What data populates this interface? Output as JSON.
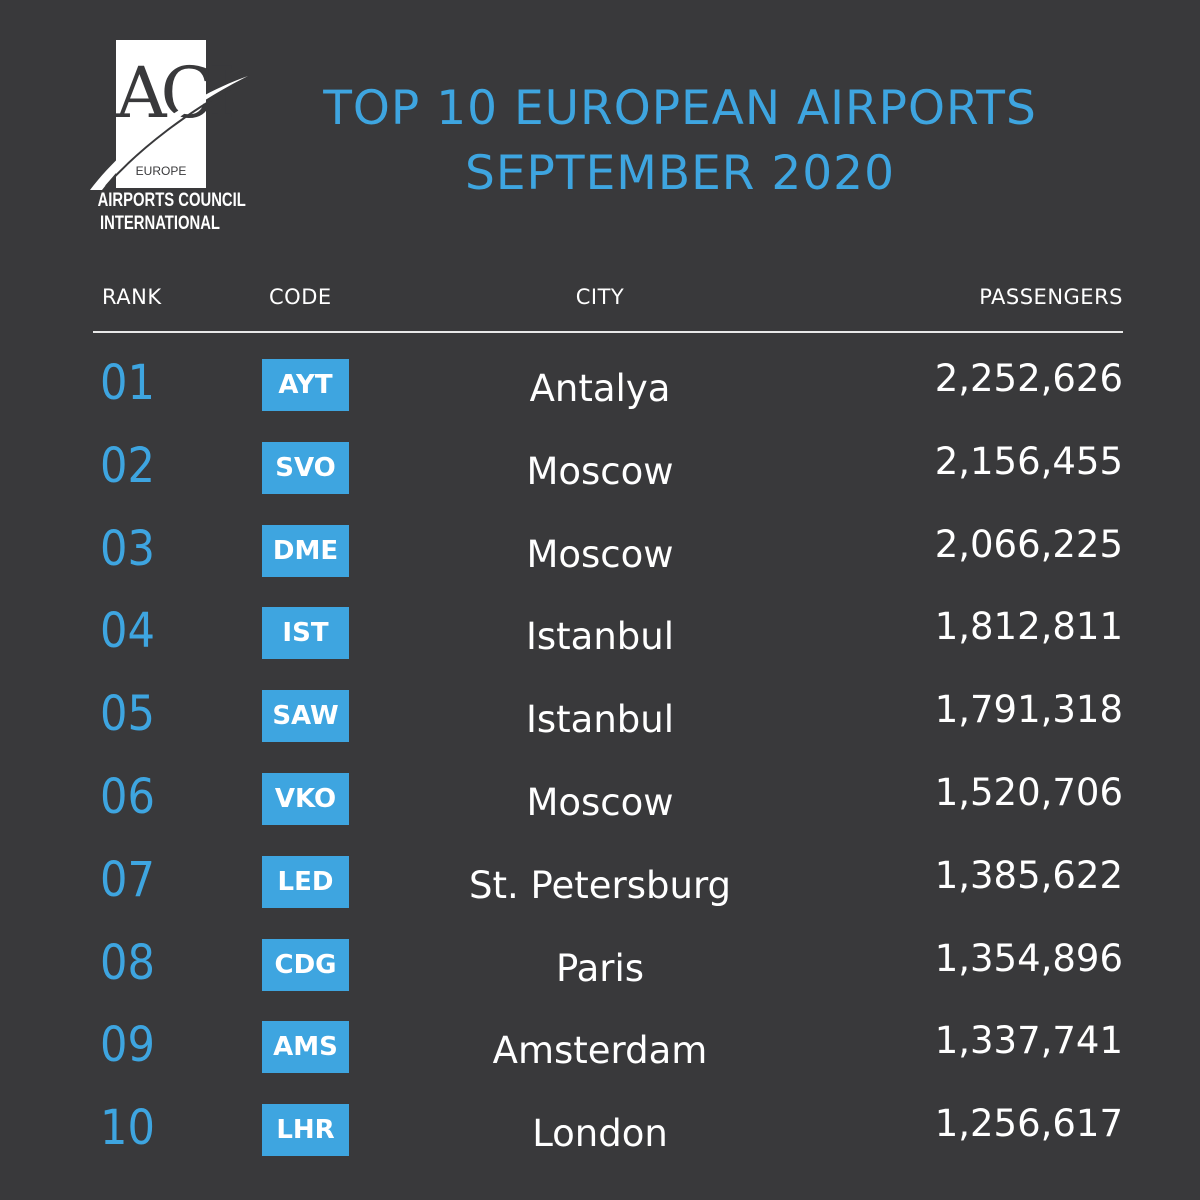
{
  "logo": {
    "mark": "ACI",
    "region": "EUROPE",
    "line1": "AIRPORTS COUNCIL",
    "line2": "INTERNATIONAL"
  },
  "title": {
    "line1": "TOP 10 EUROPEAN AIRPORTS",
    "line2": "SEPTEMBER 2020"
  },
  "columns": {
    "rank": "RANK",
    "code": "CODE",
    "city": "CITY",
    "passengers": "PASSENGERS"
  },
  "colors": {
    "background": "#39393b",
    "accent": "#3ea5e0",
    "text": "#ffffff"
  },
  "rows": [
    {
      "rank": "01",
      "code": "AYT",
      "city": "Antalya",
      "passengers": "2,252,626"
    },
    {
      "rank": "02",
      "code": "SVO",
      "city": "Moscow",
      "passengers": "2,156,455"
    },
    {
      "rank": "03",
      "code": "DME",
      "city": "Moscow",
      "passengers": "2,066,225"
    },
    {
      "rank": "04",
      "code": "IST",
      "city": "Istanbul",
      "passengers": "1,812,811"
    },
    {
      "rank": "05",
      "code": "SAW",
      "city": "Istanbul",
      "passengers": "1,791,318"
    },
    {
      "rank": "06",
      "code": "VKO",
      "city": "Moscow",
      "passengers": "1,520,706"
    },
    {
      "rank": "07",
      "code": "LED",
      "city": "St. Petersburg",
      "passengers": "1,385,622"
    },
    {
      "rank": "08",
      "code": "CDG",
      "city": "Paris",
      "passengers": "1,354,896"
    },
    {
      "rank": "09",
      "code": "AMS",
      "city": "Amsterdam",
      "passengers": "1,337,741"
    },
    {
      "rank": "10",
      "code": "LHR",
      "city": "London",
      "passengers": "1,256,617"
    }
  ]
}
